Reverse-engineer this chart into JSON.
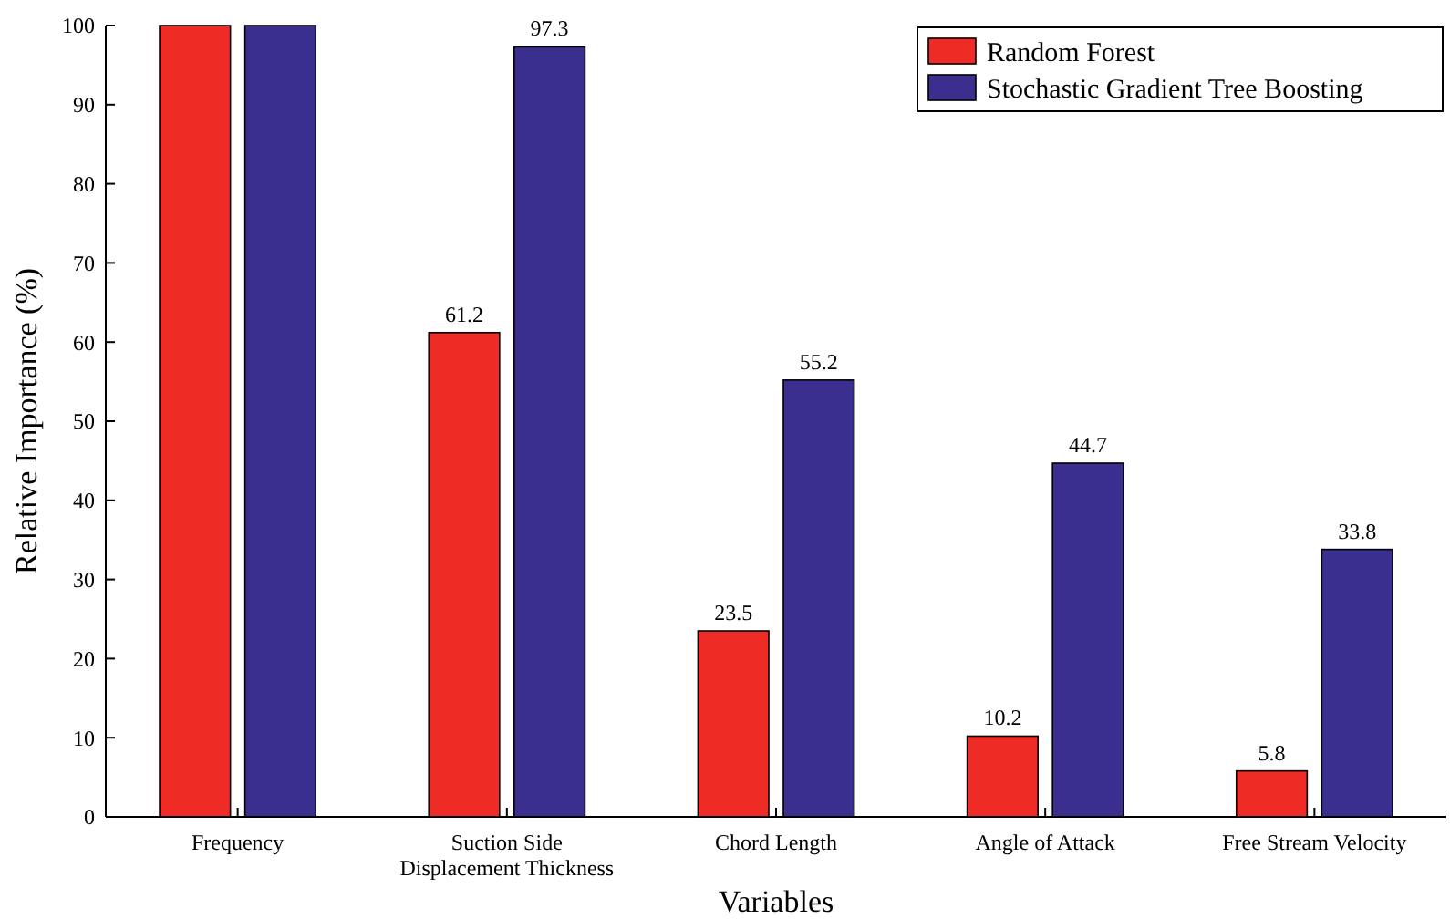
{
  "chart_data": {
    "type": "bar",
    "xlabel": "Variables",
    "ylabel": "Relative Importance (%)",
    "categories": [
      "Frequency",
      "Suction Side\nDisplacement Thickness",
      "Chord Length",
      "Angle of Attack",
      "Free Stream Velocity"
    ],
    "series": [
      {
        "name": "Random Forest",
        "color": "#ee2b24",
        "values": [
          100,
          61.2,
          23.5,
          10.2,
          5.8
        ],
        "value_labels": [
          null,
          "61.2",
          "23.5",
          "10.2",
          "5.8"
        ]
      },
      {
        "name": "Stochastic Gradient Tree Boosting",
        "color": "#3a2f8f",
        "values": [
          100,
          97.3,
          55.2,
          44.7,
          33.8
        ],
        "value_labels": [
          null,
          "97.3",
          "55.2",
          "44.7",
          "33.8"
        ]
      }
    ],
    "ylim": [
      0,
      100
    ],
    "yticks": [
      0,
      10,
      20,
      30,
      40,
      50,
      60,
      70,
      80,
      90,
      100
    ],
    "legend": "top right",
    "grid": false
  }
}
